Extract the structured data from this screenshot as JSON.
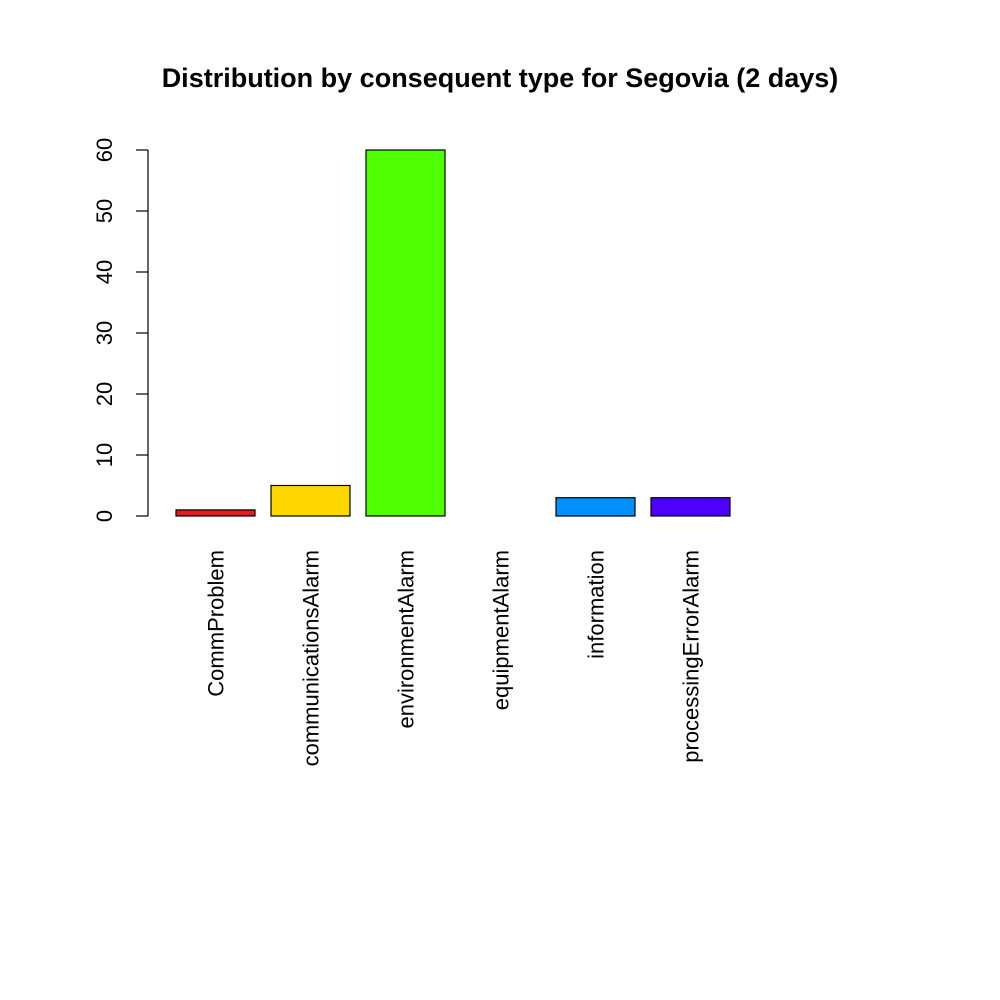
{
  "chart_data": {
    "type": "bar",
    "title": "Distribution by consequent type for Segovia (2 days)",
    "xlabel": "",
    "ylabel": "",
    "categories": [
      "CommProblem",
      "communicationsAlarm",
      "environmentAlarm",
      "equipmentAlarm",
      "information",
      "processingErrorAlarm",
      ""
    ],
    "values": [
      1,
      5,
      60,
      0,
      3,
      3,
      0
    ],
    "colors": [
      "#e41a1c",
      "#ffd700",
      "#4dff00",
      "#00ff4d",
      "#0090ff",
      "#4d00ff",
      "#ff00e6"
    ],
    "ylim": [
      0,
      60
    ],
    "yticks": [
      0,
      10,
      20,
      30,
      40,
      50,
      60
    ],
    "grid": false,
    "legend": "none"
  }
}
